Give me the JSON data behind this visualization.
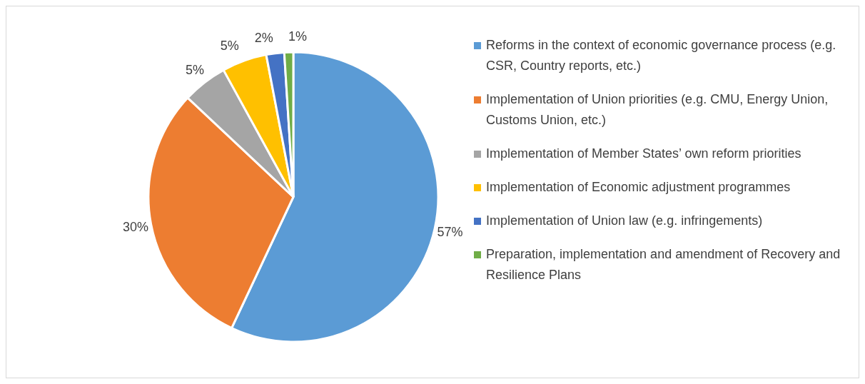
{
  "chart_data": {
    "type": "pie",
    "categories": [
      "Reforms in the context of economic governance process (e.g. CSR, Country reports, etc.)",
      "Implementation of Union priorities (e.g. CMU, Energy Union, Customs Union, etc.)",
      "Implementation of Member States’ own reform priorities",
      "Implementation of Economic adjustment programmes",
      "Implementation of Union law (e.g. infringements)",
      "Preparation, implementation and amendment of Recovery and Resilience Plans"
    ],
    "values": [
      57,
      30,
      5,
      5,
      2,
      1
    ],
    "colors": [
      "#5b9bd5",
      "#ed7d31",
      "#a5a5a5",
      "#ffc000",
      "#4472c4",
      "#70ad47"
    ],
    "value_labels": [
      "57%",
      "30%",
      "5%",
      "5%",
      "2%",
      "1%"
    ],
    "legend": "right"
  }
}
